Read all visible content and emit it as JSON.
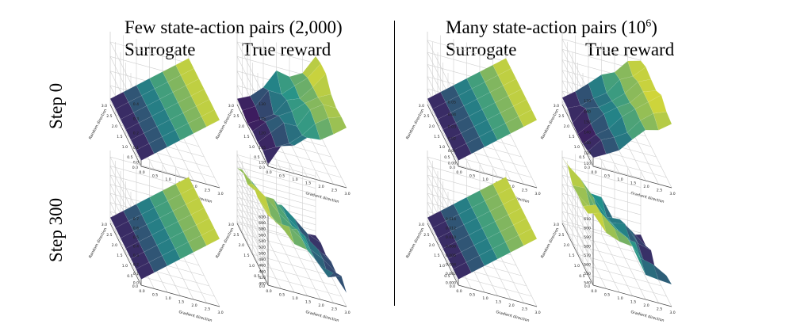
{
  "titles": {
    "left": "Few state-action pairs (2,000)",
    "right_prefix": "Many state-action pairs (10",
    "right_sup": "6",
    "right_suffix": ")"
  },
  "columns": [
    "Surrogate",
    "True reward",
    "Surrogate",
    "True reward"
  ],
  "rows": [
    "Step 0",
    "Step 300"
  ],
  "colors": {
    "low": "#440154",
    "mid": "#21918c",
    "high": "#fde725"
  },
  "chart_data": [
    {
      "type": "surface3d",
      "row": "Step 0",
      "group": "Few state-action pairs (2,000)",
      "panel": "Surrogate",
      "xlabel": "Gradient direction",
      "ylabel": "Random direction",
      "xticks": [
        "0.0",
        "0.5",
        "1.0",
        "1.5",
        "2.0",
        "2.5",
        "3.0"
      ],
      "yticks": [
        "0.0",
        "0.5",
        "1.0",
        "1.5",
        "2.0",
        "2.5",
        "3.0"
      ],
      "zticks": [
        "0.0",
        "0.1",
        "0.2",
        "0.3",
        "0.4"
      ],
      "zlim": [
        0.0,
        0.4
      ],
      "x_range": [
        0,
        3
      ],
      "y_range": [
        0,
        3
      ],
      "trend": "increasing",
      "noise": 0.0
    },
    {
      "type": "surface3d",
      "row": "Step 0",
      "group": "Few state-action pairs (2,000)",
      "panel": "True reward",
      "xlabel": "Gradient direction",
      "ylabel": "Random direction",
      "xticks": [
        "0.0",
        "0.5",
        "1.0",
        "1.5",
        "2.0",
        "2.5",
        "3.0"
      ],
      "yticks": [
        "0.0",
        "0.5",
        "1.0",
        "1.5",
        "2.0",
        "2.5",
        "3.0"
      ],
      "zticks": [
        "110",
        "115",
        "120",
        "125",
        "130"
      ],
      "zlim": [
        107,
        132
      ],
      "x_range": [
        0,
        3
      ],
      "y_range": [
        0,
        3
      ],
      "trend": "increasing",
      "noise": 0.12
    },
    {
      "type": "surface3d",
      "row": "Step 0",
      "group": "Many state-action pairs (10^6)",
      "panel": "Surrogate",
      "xlabel": "Gradient direction",
      "ylabel": "Random direction",
      "xticks": [
        "0.0",
        "0.5",
        "1.0",
        "1.5",
        "2.0",
        "2.5",
        "3.0"
      ],
      "yticks": [
        "0.0",
        "0.5",
        "1.0",
        "1.5",
        "2.0",
        "2.5",
        "3.0"
      ],
      "zticks": [
        "0.00",
        "0.01",
        "0.02",
        "0.03",
        "0.04",
        "0.05"
      ],
      "zlim": [
        0.0,
        0.05
      ],
      "x_range": [
        0,
        3
      ],
      "y_range": [
        0,
        3
      ],
      "trend": "increasing",
      "noise": 0.0
    },
    {
      "type": "surface3d",
      "row": "Step 0",
      "group": "Many state-action pairs (10^6)",
      "panel": "True reward",
      "xlabel": "Gradient direction",
      "ylabel": "Random direction",
      "xticks": [
        "0.0",
        "0.5",
        "1.0",
        "1.5",
        "2.0",
        "2.5",
        "3.0"
      ],
      "yticks": [
        "0.0",
        "0.5",
        "1.0",
        "1.5",
        "2.0",
        "2.5",
        "3.0"
      ],
      "zticks": [
        "110",
        "120",
        "130",
        "140",
        "150",
        "160",
        "170"
      ],
      "zlim": [
        105,
        172
      ],
      "x_range": [
        0,
        3
      ],
      "y_range": [
        0,
        3
      ],
      "trend": "increasing",
      "noise": 0.06
    },
    {
      "type": "surface3d",
      "row": "Step 300",
      "group": "Few state-action pairs (2,000)",
      "panel": "Surrogate",
      "xlabel": "Gradient direction",
      "ylabel": "Random direction",
      "xticks": [
        "0.0",
        "0.5",
        "1.0",
        "1.5",
        "2.0",
        "2.5",
        "3.0"
      ],
      "yticks": [
        "0.0",
        "0.5",
        "1.0",
        "1.5",
        "2.0",
        "2.5",
        "3.0"
      ],
      "zticks": [
        "0.0",
        "0.1",
        "0.2",
        "0.3",
        "0.4",
        "0.5",
        "0.6",
        "0.7"
      ],
      "zlim": [
        0.0,
        0.7
      ],
      "x_range": [
        0,
        3
      ],
      "y_range": [
        0,
        3
      ],
      "trend": "increasing",
      "noise": 0.0
    },
    {
      "type": "surface3d",
      "row": "Step 300",
      "group": "Few state-action pairs (2,000)",
      "panel": "True reward",
      "xlabel": "Gradient direction",
      "ylabel": "Random direction",
      "xticks": [
        "0.0",
        "0.5",
        "1.0",
        "1.5",
        "2.0",
        "2.5",
        "3.0"
      ],
      "yticks": [
        "0.0",
        "0.5",
        "1.0",
        "1.5",
        "2.0",
        "2.5",
        "3.0"
      ],
      "zticks": [
        "400",
        "420",
        "440",
        "460",
        "480",
        "500",
        "520",
        "540",
        "560",
        "580",
        "600",
        "620"
      ],
      "zlim": [
        390,
        625
      ],
      "x_range": [
        0,
        3
      ],
      "y_range": [
        0,
        3
      ],
      "trend": "decreasing",
      "noise": 0.1
    },
    {
      "type": "surface3d",
      "row": "Step 300",
      "group": "Many state-action pairs (10^6)",
      "panel": "Surrogate",
      "xlabel": "Gradient direction",
      "ylabel": "Random direction",
      "xticks": [
        "0.0",
        "0.5",
        "1.0",
        "1.5",
        "2.0",
        "2.5",
        "3.0"
      ],
      "yticks": [
        "0.0",
        "0.5",
        "1.0",
        "1.5",
        "2.0",
        "2.5",
        "3.0"
      ],
      "zticks": [
        "0.000",
        "0.002",
        "0.004",
        "0.006",
        "0.008",
        "0.010",
        "0.012",
        "0.014"
      ],
      "zlim": [
        0.0,
        0.014
      ],
      "x_range": [
        0,
        3
      ],
      "y_range": [
        0,
        3
      ],
      "trend": "increasing",
      "noise": 0.0
    },
    {
      "type": "surface3d",
      "row": "Step 300",
      "group": "Many state-action pairs (10^6)",
      "panel": "True reward",
      "xlabel": "Gradient direction",
      "ylabel": "Random direction",
      "xticks": [
        "0.0",
        "0.5",
        "1.0",
        "1.5",
        "2.0",
        "2.5",
        "3.0"
      ],
      "yticks": [
        "0.0",
        "0.5",
        "1.0",
        "1.5",
        "2.0",
        "2.5",
        "3.0"
      ],
      "zticks": [
        "540",
        "550",
        "560",
        "570",
        "580",
        "590",
        "600",
        "610"
      ],
      "zlim": [
        535,
        612
      ],
      "x_range": [
        0,
        3
      ],
      "y_range": [
        0,
        3
      ],
      "trend": "decreasing",
      "noise": 0.12
    }
  ]
}
